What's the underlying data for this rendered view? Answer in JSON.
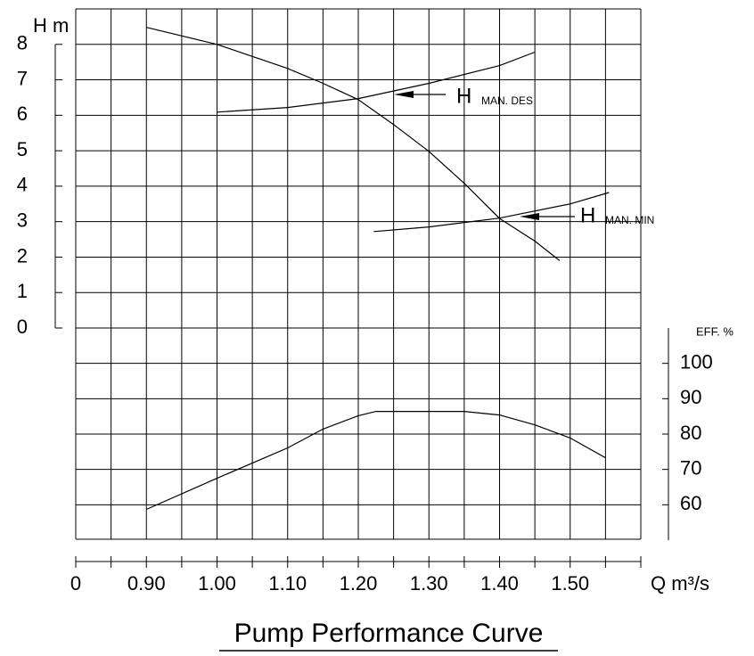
{
  "chart_data": {
    "type": "line",
    "title": "Pump Performance Curve",
    "x_label": "Q m³/s",
    "y_label": "H m",
    "y2_label": "EFF.  %",
    "x_break_label": "0",
    "xlim": [
      0.8,
      1.6
    ],
    "xticks": [
      {
        "value": 0.9,
        "label": "0.90"
      },
      {
        "value": 1.0,
        "label": "1.00"
      },
      {
        "value": 1.1,
        "label": "1.10"
      },
      {
        "value": 1.2,
        "label": "1.20"
      },
      {
        "value": 1.3,
        "label": "1.30"
      },
      {
        "value": 1.4,
        "label": "1.40"
      },
      {
        "value": 1.5,
        "label": "1.50"
      }
    ],
    "xminorticks": [
      0.8,
      0.85,
      0.9,
      0.95,
      1.0,
      1.05,
      1.1,
      1.15,
      1.2,
      1.25,
      1.3,
      1.35,
      1.4,
      1.45,
      1.5,
      1.55,
      1.6
    ],
    "ylim": [
      0,
      9
    ],
    "yticks": [
      0,
      1,
      2,
      3,
      4,
      5,
      6,
      7,
      8
    ],
    "y2lim": [
      50,
      110
    ],
    "y2ticks": [
      60,
      70,
      80,
      90,
      100
    ],
    "grid": true,
    "series": [
      {
        "color": "#000000",
        "x": [
          0.9,
          1.0,
          1.1,
          1.15,
          1.2,
          1.25,
          1.3,
          1.35,
          1.4,
          1.45,
          1.485
        ],
        "values": [
          8.48,
          8.0,
          7.32,
          6.9,
          6.44,
          5.74,
          4.98,
          4.08,
          3.09,
          2.45,
          1.9
        ]
      },
      {
        "color": "#000000",
        "x": [
          1.0,
          1.1,
          1.2,
          1.3,
          1.4,
          1.45
        ],
        "values": [
          6.09,
          6.22,
          6.47,
          6.9,
          7.4,
          7.78
        ]
      },
      {
        "color": "#000000",
        "x": [
          1.222,
          1.3,
          1.4,
          1.5,
          1.555
        ],
        "values": [
          2.72,
          2.85,
          3.1,
          3.5,
          3.82
        ]
      },
      {
        "color": "#000000",
        "axis": "y2",
        "x": [
          0.9,
          1.0,
          1.1,
          1.15,
          1.2,
          1.225,
          1.3,
          1.35,
          1.4,
          1.45,
          1.5,
          1.55
        ],
        "values": [
          58.7,
          67.5,
          76.1,
          81.4,
          85.2,
          86.4,
          86.4,
          86.4,
          85.4,
          82.6,
          78.9,
          73.3
        ]
      }
    ],
    "annotations": [
      {
        "label": "H",
        "sub": "MAN. DES"
      },
      {
        "label": "H",
        "sub": "MAN. MIN"
      }
    ]
  }
}
